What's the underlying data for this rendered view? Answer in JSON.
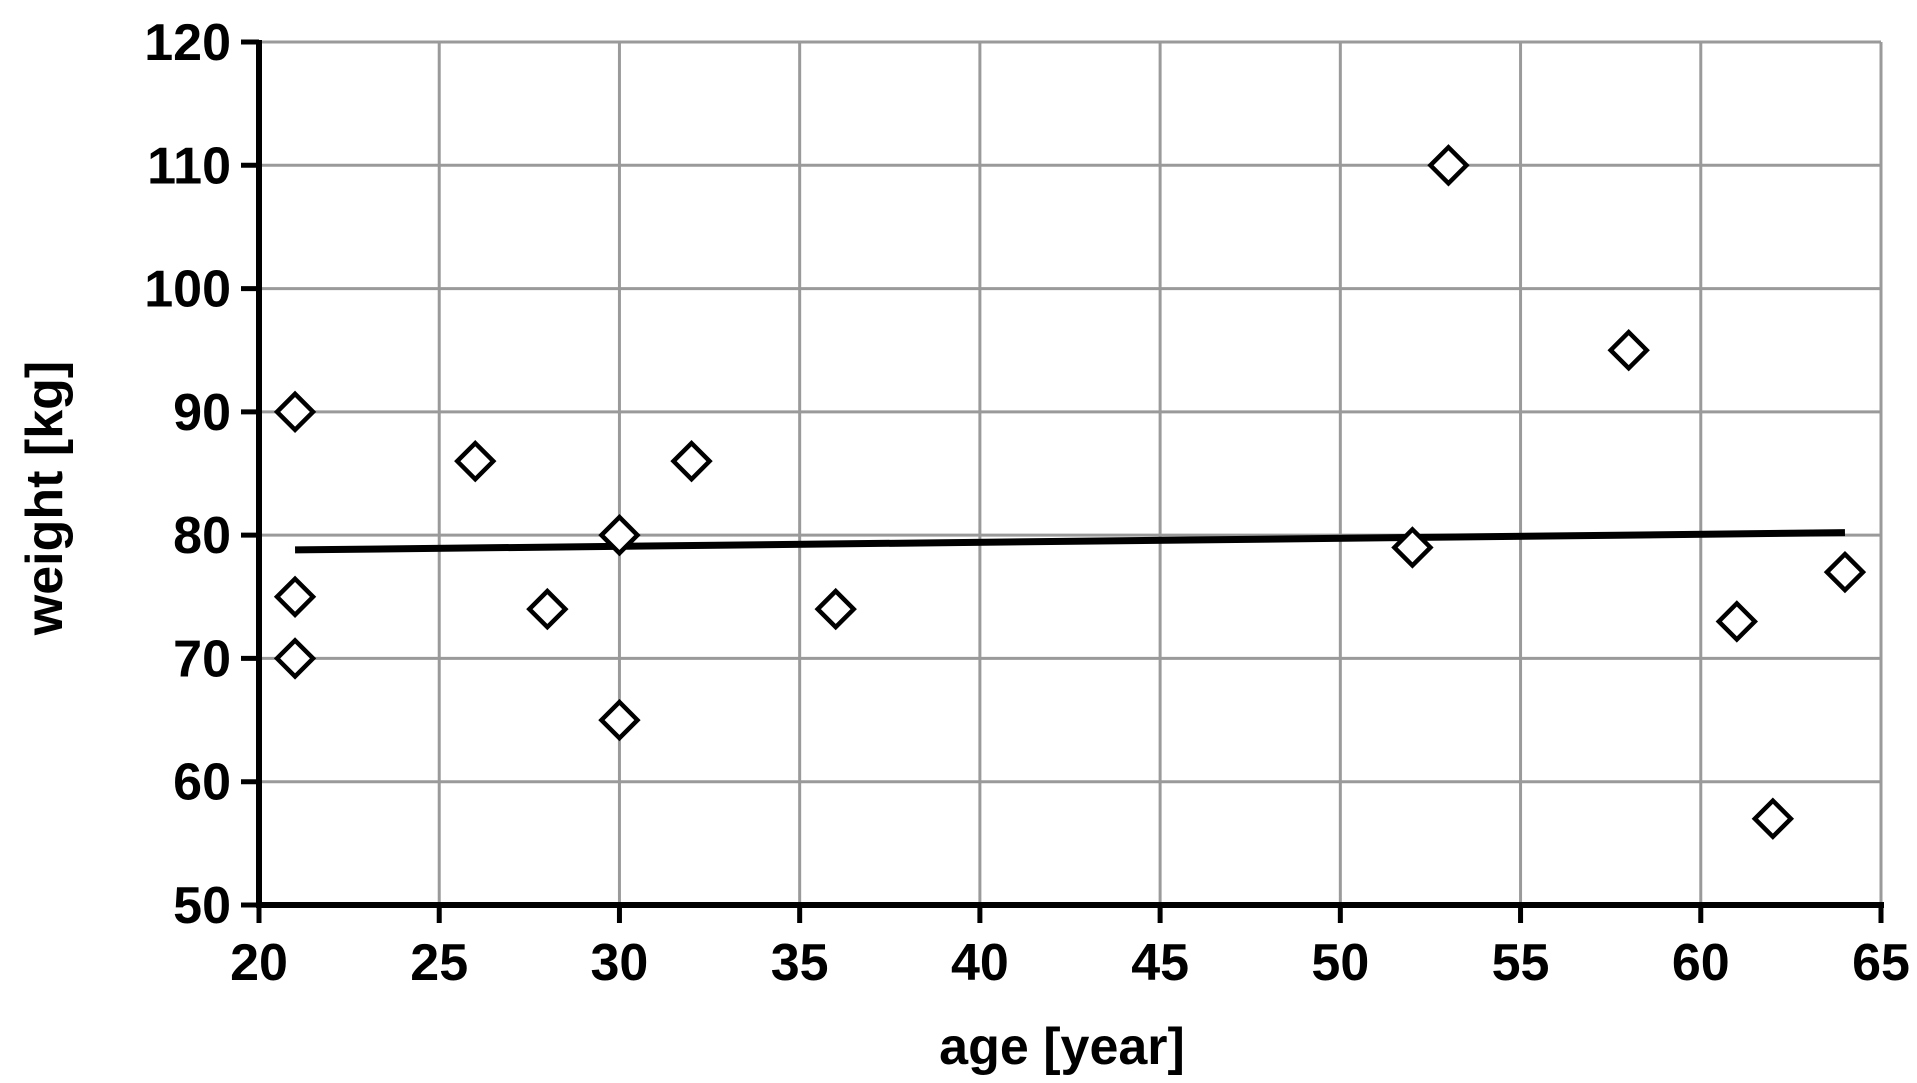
{
  "chart_data": {
    "type": "scatter",
    "title": "",
    "xlabel": "age [year]",
    "ylabel": "weight [kg]",
    "xlim": [
      20,
      65
    ],
    "ylim": [
      50,
      120
    ],
    "xticks": [
      20,
      25,
      30,
      35,
      40,
      45,
      50,
      55,
      60,
      65
    ],
    "yticks": [
      50,
      60,
      70,
      80,
      90,
      100,
      110,
      120
    ],
    "grid": true,
    "legend": "none",
    "marker": "open-diamond",
    "series": [
      {
        "points": [
          {
            "x": 21,
            "y": 90
          },
          {
            "x": 21,
            "y": 75
          },
          {
            "x": 21,
            "y": 70
          },
          {
            "x": 26,
            "y": 86
          },
          {
            "x": 28,
            "y": 74
          },
          {
            "x": 30,
            "y": 80
          },
          {
            "x": 30,
            "y": 65
          },
          {
            "x": 32,
            "y": 86
          },
          {
            "x": 36,
            "y": 74
          },
          {
            "x": 52,
            "y": 79
          },
          {
            "x": 53,
            "y": 110
          },
          {
            "x": 58,
            "y": 95
          },
          {
            "x": 61,
            "y": 73
          },
          {
            "x": 62,
            "y": 57
          },
          {
            "x": 64,
            "y": 77
          }
        ]
      }
    ],
    "trendline": {
      "type": "linear",
      "points": [
        {
          "x": 21,
          "y": 78.8
        },
        {
          "x": 64,
          "y": 80.2
        }
      ]
    }
  }
}
